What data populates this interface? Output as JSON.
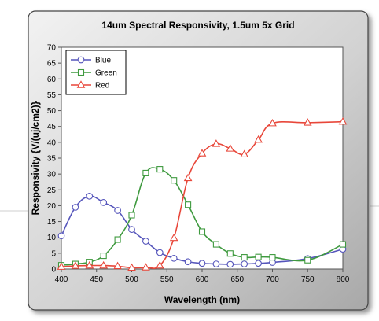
{
  "chart_data": {
    "type": "line",
    "title": "14um Spectral Responsivity, 1.5um 5x Grid",
    "xlabel": "Wavelength (nm)",
    "ylabel": "Responsivity {V/(uj/cm2)}",
    "xlim": [
      400,
      800
    ],
    "ylim": [
      0,
      70
    ],
    "xticks": [
      400,
      450,
      500,
      550,
      600,
      650,
      700,
      750,
      800
    ],
    "yticks": [
      0,
      5,
      10,
      15,
      20,
      25,
      30,
      35,
      40,
      45,
      50,
      55,
      60,
      65,
      70
    ],
    "grid": false,
    "legend_position": "top-left",
    "series": [
      {
        "name": "Blue",
        "color": "#5555bb",
        "marker": "circle",
        "points": [
          [
            400,
            10.5
          ],
          [
            420,
            19.5
          ],
          [
            440,
            23
          ],
          [
            460,
            21
          ],
          [
            480,
            18.5
          ],
          [
            500,
            12.5
          ],
          [
            520,
            8.8
          ],
          [
            540,
            5.2
          ],
          [
            560,
            3.4
          ],
          [
            580,
            2.3
          ],
          [
            600,
            1.8
          ],
          [
            620,
            1.6
          ],
          [
            640,
            1.5
          ],
          [
            660,
            1.6
          ],
          [
            680,
            1.8
          ],
          [
            700,
            2.1
          ],
          [
            750,
            3.3
          ],
          [
            800,
            6.3
          ]
        ]
      },
      {
        "name": "Green",
        "color": "#3f9a3f",
        "marker": "square",
        "points": [
          [
            400,
            1.2
          ],
          [
            420,
            1.6
          ],
          [
            440,
            2.2
          ],
          [
            460,
            4.2
          ],
          [
            480,
            9.3
          ],
          [
            500,
            17
          ],
          [
            520,
            30.3
          ],
          [
            540,
            31.5
          ],
          [
            560,
            28
          ],
          [
            580,
            20.3
          ],
          [
            600,
            11.8
          ],
          [
            620,
            7.8
          ],
          [
            640,
            4.9
          ],
          [
            660,
            3.7
          ],
          [
            680,
            3.8
          ],
          [
            700,
            3.7
          ],
          [
            750,
            2.8
          ],
          [
            800,
            7.8
          ]
        ]
      },
      {
        "name": "Red",
        "color": "#e8473a",
        "marker": "triangle",
        "points": [
          [
            400,
            0.7
          ],
          [
            420,
            1.0
          ],
          [
            440,
            1.1
          ],
          [
            460,
            1.1
          ],
          [
            480,
            0.9
          ],
          [
            500,
            0.4
          ],
          [
            520,
            0.5
          ],
          [
            540,
            1.1
          ],
          [
            560,
            9.8
          ],
          [
            580,
            28.7
          ],
          [
            600,
            36.5
          ],
          [
            620,
            39.5
          ],
          [
            640,
            38
          ],
          [
            660,
            36.2
          ],
          [
            680,
            40.8
          ],
          [
            700,
            46
          ],
          [
            750,
            46.2
          ],
          [
            800,
            46.5
          ]
        ]
      }
    ]
  }
}
